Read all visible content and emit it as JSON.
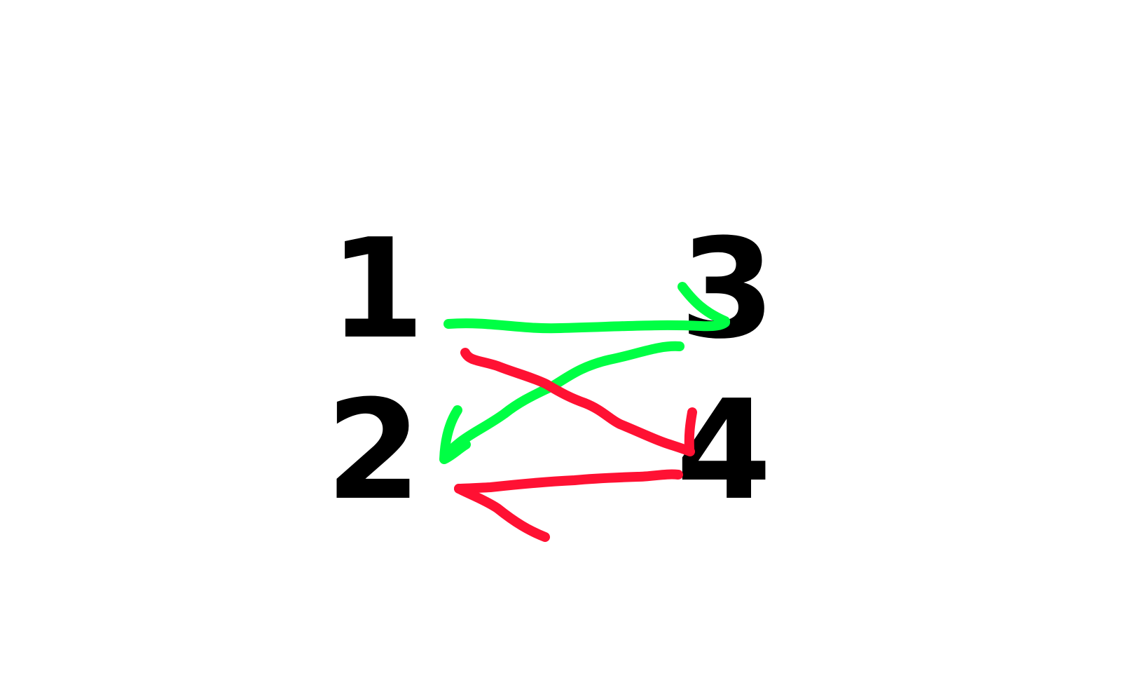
{
  "labels": {
    "one": "1",
    "two": "2",
    "three": "3",
    "four": "4"
  },
  "colors": {
    "background": "#ffffff",
    "text": "#000000",
    "green_stroke": "#00ff44",
    "red_stroke": "#ff1133"
  }
}
